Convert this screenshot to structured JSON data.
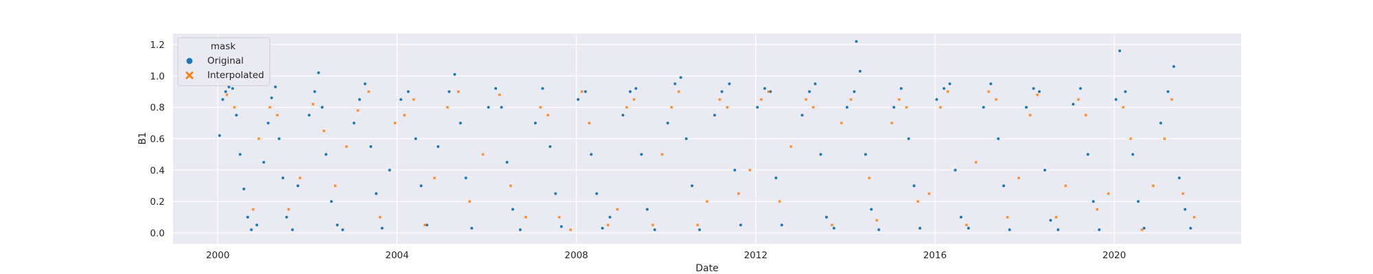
{
  "chart_data": {
    "type": "scatter",
    "title": "",
    "xlabel": "Date",
    "ylabel": "B1",
    "xlim": [
      "1999-01-01",
      "2022-11-01"
    ],
    "ylim": [
      -0.07,
      1.27
    ],
    "x_ticks": [
      "2000",
      "2004",
      "2008",
      "2012",
      "2016",
      "2020"
    ],
    "y_ticks": [
      "0.0",
      "0.2",
      "0.4",
      "0.6",
      "0.8",
      "1.0",
      "1.2"
    ],
    "grid": true,
    "legend": {
      "title": "mask",
      "placement": "upper-left",
      "entries": [
        {
          "label": "Original",
          "marker": "circle",
          "color": "#1f77b4"
        },
        {
          "label": "Interpolated",
          "marker": "x",
          "color": "#ff7f0e"
        }
      ]
    },
    "seasonal_pattern": {
      "description_values": "annual cycle: peak near 0.9 in early-to-mid year, trough near 0.0 around year end",
      "peak_level": 0.9,
      "trough_level": 0.02
    },
    "series": [
      {
        "name": "Original",
        "color": "#1f77b4",
        "points": [
          [
            "2000-01-15",
            0.62
          ],
          [
            "2000-02-10",
            0.85
          ],
          [
            "2000-03-05",
            0.9
          ],
          [
            "2000-04-01",
            0.93
          ],
          [
            "2000-05-01",
            0.92
          ],
          [
            "2000-06-01",
            0.75
          ],
          [
            "2000-07-01",
            0.5
          ],
          [
            "2000-08-01",
            0.28
          ],
          [
            "2000-09-01",
            0.1
          ],
          [
            "2000-10-01",
            0.02
          ],
          [
            "2000-11-15",
            0.05
          ],
          [
            "2001-01-10",
            0.45
          ],
          [
            "2001-02-15",
            0.7
          ],
          [
            "2001-03-15",
            0.86
          ],
          [
            "2001-04-15",
            0.93
          ],
          [
            "2001-05-15",
            0.6
          ],
          [
            "2001-06-15",
            0.35
          ],
          [
            "2001-07-15",
            0.1
          ],
          [
            "2001-09-01",
            0.02
          ],
          [
            "2001-10-15",
            0.3
          ],
          [
            "2002-01-15",
            0.75
          ],
          [
            "2002-03-01",
            0.9
          ],
          [
            "2002-04-01",
            1.02
          ],
          [
            "2002-05-01",
            0.8
          ],
          [
            "2002-06-01",
            0.5
          ],
          [
            "2002-07-15",
            0.2
          ],
          [
            "2002-09-01",
            0.05
          ],
          [
            "2002-10-15",
            0.02
          ],
          [
            "2003-01-15",
            0.7
          ],
          [
            "2003-03-01",
            0.85
          ],
          [
            "2003-04-15",
            0.95
          ],
          [
            "2003-06-01",
            0.55
          ],
          [
            "2003-07-15",
            0.25
          ],
          [
            "2003-09-01",
            0.03
          ],
          [
            "2003-11-01",
            0.4
          ],
          [
            "2004-02-01",
            0.85
          ],
          [
            "2004-04-01",
            0.9
          ],
          [
            "2004-06-01",
            0.6
          ],
          [
            "2004-07-15",
            0.3
          ],
          [
            "2004-09-01",
            0.05
          ],
          [
            "2004-12-01",
            0.55
          ],
          [
            "2005-03-01",
            0.9
          ],
          [
            "2005-04-15",
            1.01
          ],
          [
            "2005-06-01",
            0.7
          ],
          [
            "2005-07-15",
            0.35
          ],
          [
            "2005-09-01",
            0.03
          ],
          [
            "2006-01-15",
            0.8
          ],
          [
            "2006-03-15",
            0.92
          ],
          [
            "2006-05-01",
            0.8
          ],
          [
            "2006-06-15",
            0.45
          ],
          [
            "2006-08-01",
            0.15
          ],
          [
            "2006-10-01",
            0.02
          ],
          [
            "2007-02-01",
            0.7
          ],
          [
            "2007-04-01",
            0.92
          ],
          [
            "2007-06-01",
            0.55
          ],
          [
            "2007-07-15",
            0.25
          ],
          [
            "2007-09-01",
            0.04
          ],
          [
            "2008-01-15",
            0.85
          ],
          [
            "2008-03-15",
            0.9
          ],
          [
            "2008-05-01",
            0.5
          ],
          [
            "2008-06-15",
            0.25
          ],
          [
            "2008-08-01",
            0.03
          ],
          [
            "2008-10-01",
            0.1
          ],
          [
            "2009-01-15",
            0.75
          ],
          [
            "2009-03-15",
            0.9
          ],
          [
            "2009-05-01",
            0.92
          ],
          [
            "2009-06-15",
            0.5
          ],
          [
            "2009-08-01",
            0.15
          ],
          [
            "2009-10-01",
            0.02
          ],
          [
            "2010-01-15",
            0.7
          ],
          [
            "2010-03-15",
            0.95
          ],
          [
            "2010-05-01",
            0.99
          ],
          [
            "2010-06-15",
            0.6
          ],
          [
            "2010-08-01",
            0.3
          ],
          [
            "2010-10-01",
            0.02
          ],
          [
            "2011-02-01",
            0.75
          ],
          [
            "2011-04-01",
            0.9
          ],
          [
            "2011-06-01",
            0.95
          ],
          [
            "2011-07-15",
            0.4
          ],
          [
            "2011-09-01",
            0.05
          ],
          [
            "2012-01-15",
            0.8
          ],
          [
            "2012-03-15",
            0.92
          ],
          [
            "2012-05-01",
            0.9
          ],
          [
            "2012-06-15",
            0.35
          ],
          [
            "2012-08-01",
            0.05
          ],
          [
            "2013-01-15",
            0.75
          ],
          [
            "2013-03-15",
            0.9
          ],
          [
            "2013-05-01",
            0.95
          ],
          [
            "2013-06-15",
            0.5
          ],
          [
            "2013-08-01",
            0.1
          ],
          [
            "2013-10-01",
            0.03
          ],
          [
            "2014-01-15",
            0.8
          ],
          [
            "2014-03-15",
            0.9
          ],
          [
            "2014-04-01",
            1.22
          ],
          [
            "2014-05-01",
            1.03
          ],
          [
            "2014-06-15",
            0.5
          ],
          [
            "2014-08-01",
            0.15
          ],
          [
            "2014-10-01",
            0.02
          ],
          [
            "2015-02-01",
            0.8
          ],
          [
            "2015-04-01",
            0.92
          ],
          [
            "2015-06-01",
            0.6
          ],
          [
            "2015-07-15",
            0.3
          ],
          [
            "2015-09-01",
            0.03
          ],
          [
            "2016-01-15",
            0.85
          ],
          [
            "2016-03-15",
            0.92
          ],
          [
            "2016-05-01",
            0.95
          ],
          [
            "2016-06-15",
            0.4
          ],
          [
            "2016-08-01",
            0.1
          ],
          [
            "2016-10-01",
            0.03
          ],
          [
            "2017-02-01",
            0.8
          ],
          [
            "2017-04-01",
            0.95
          ],
          [
            "2017-06-01",
            0.6
          ],
          [
            "2017-07-15",
            0.3
          ],
          [
            "2017-09-01",
            0.02
          ],
          [
            "2018-01-15",
            0.8
          ],
          [
            "2018-03-15",
            0.92
          ],
          [
            "2018-05-01",
            0.9
          ],
          [
            "2018-06-15",
            0.4
          ],
          [
            "2018-08-01",
            0.08
          ],
          [
            "2018-10-01",
            0.02
          ],
          [
            "2019-02-01",
            0.82
          ],
          [
            "2019-04-01",
            0.92
          ],
          [
            "2019-06-01",
            0.5
          ],
          [
            "2019-07-15",
            0.2
          ],
          [
            "2019-09-01",
            0.02
          ],
          [
            "2020-01-15",
            0.85
          ],
          [
            "2020-02-15",
            1.16
          ],
          [
            "2020-04-01",
            0.9
          ],
          [
            "2020-06-01",
            0.5
          ],
          [
            "2020-07-15",
            0.2
          ],
          [
            "2020-09-01",
            0.03
          ],
          [
            "2021-01-15",
            0.7
          ],
          [
            "2021-03-15",
            0.9
          ],
          [
            "2021-05-01",
            1.06
          ],
          [
            "2021-06-15",
            0.35
          ],
          [
            "2021-08-01",
            0.15
          ],
          [
            "2021-09-15",
            0.03
          ]
        ]
      },
      {
        "name": "Interpolated",
        "color": "#ff7f0e",
        "points": [
          [
            "2000-03-15",
            0.88
          ],
          [
            "2000-05-15",
            0.8
          ],
          [
            "2000-10-15",
            0.15
          ],
          [
            "2000-12-01",
            0.6
          ],
          [
            "2001-03-01",
            0.8
          ],
          [
            "2001-05-01",
            0.75
          ],
          [
            "2001-08-01",
            0.15
          ],
          [
            "2001-11-01",
            0.35
          ],
          [
            "2002-02-15",
            0.82
          ],
          [
            "2002-05-15",
            0.65
          ],
          [
            "2002-08-15",
            0.3
          ],
          [
            "2002-11-15",
            0.55
          ],
          [
            "2003-02-15",
            0.78
          ],
          [
            "2003-05-15",
            0.9
          ],
          [
            "2003-08-15",
            0.1
          ],
          [
            "2003-12-15",
            0.7
          ],
          [
            "2004-03-01",
            0.75
          ],
          [
            "2004-05-15",
            0.85
          ],
          [
            "2004-08-15",
            0.05
          ],
          [
            "2004-11-01",
            0.35
          ],
          [
            "2005-02-15",
            0.8
          ],
          [
            "2005-05-15",
            0.9
          ],
          [
            "2005-08-15",
            0.2
          ],
          [
            "2005-12-01",
            0.5
          ],
          [
            "2006-04-15",
            0.88
          ],
          [
            "2006-07-15",
            0.3
          ],
          [
            "2006-11-15",
            0.1
          ],
          [
            "2007-03-15",
            0.8
          ],
          [
            "2007-05-15",
            0.75
          ],
          [
            "2007-08-15",
            0.1
          ],
          [
            "2007-11-15",
            0.02
          ],
          [
            "2008-02-15",
            0.9
          ],
          [
            "2008-04-15",
            0.7
          ],
          [
            "2008-09-15",
            0.05
          ],
          [
            "2008-12-01",
            0.15
          ],
          [
            "2009-02-15",
            0.8
          ],
          [
            "2009-04-15",
            0.85
          ],
          [
            "2009-09-15",
            0.05
          ],
          [
            "2009-12-01",
            0.5
          ],
          [
            "2010-02-15",
            0.8
          ],
          [
            "2010-04-15",
            0.9
          ],
          [
            "2010-09-15",
            0.05
          ],
          [
            "2010-12-01",
            0.2
          ],
          [
            "2011-03-15",
            0.85
          ],
          [
            "2011-05-15",
            0.8
          ],
          [
            "2011-08-15",
            0.25
          ],
          [
            "2011-11-15",
            0.4
          ],
          [
            "2012-02-15",
            0.85
          ],
          [
            "2012-04-15",
            0.9
          ],
          [
            "2012-07-15",
            0.2
          ],
          [
            "2012-10-15",
            0.55
          ],
          [
            "2013-02-15",
            0.85
          ],
          [
            "2013-04-15",
            0.8
          ],
          [
            "2013-09-15",
            0.05
          ],
          [
            "2013-12-01",
            0.7
          ],
          [
            "2014-02-15",
            0.85
          ],
          [
            "2014-07-15",
            0.35
          ],
          [
            "2014-09-15",
            0.08
          ],
          [
            "2015-01-15",
            0.7
          ],
          [
            "2015-03-15",
            0.85
          ],
          [
            "2015-05-15",
            0.8
          ],
          [
            "2015-08-15",
            0.2
          ],
          [
            "2015-11-15",
            0.25
          ],
          [
            "2016-02-15",
            0.8
          ],
          [
            "2016-04-15",
            0.9
          ],
          [
            "2016-09-15",
            0.05
          ],
          [
            "2016-12-01",
            0.45
          ],
          [
            "2017-03-15",
            0.9
          ],
          [
            "2017-05-15",
            0.85
          ],
          [
            "2017-08-15",
            0.1
          ],
          [
            "2017-11-15",
            0.35
          ],
          [
            "2018-02-15",
            0.75
          ],
          [
            "2018-04-15",
            0.88
          ],
          [
            "2018-09-15",
            0.1
          ],
          [
            "2018-12-01",
            0.3
          ],
          [
            "2019-03-15",
            0.85
          ],
          [
            "2019-05-15",
            0.75
          ],
          [
            "2019-08-15",
            0.15
          ],
          [
            "2019-11-15",
            0.25
          ],
          [
            "2020-03-15",
            0.8
          ],
          [
            "2020-05-15",
            0.6
          ],
          [
            "2020-08-15",
            0.02
          ],
          [
            "2020-11-15",
            0.3
          ],
          [
            "2021-02-15",
            0.6
          ],
          [
            "2021-04-15",
            0.85
          ],
          [
            "2021-07-15",
            0.25
          ],
          [
            "2021-10-15",
            0.1
          ]
        ]
      }
    ]
  }
}
